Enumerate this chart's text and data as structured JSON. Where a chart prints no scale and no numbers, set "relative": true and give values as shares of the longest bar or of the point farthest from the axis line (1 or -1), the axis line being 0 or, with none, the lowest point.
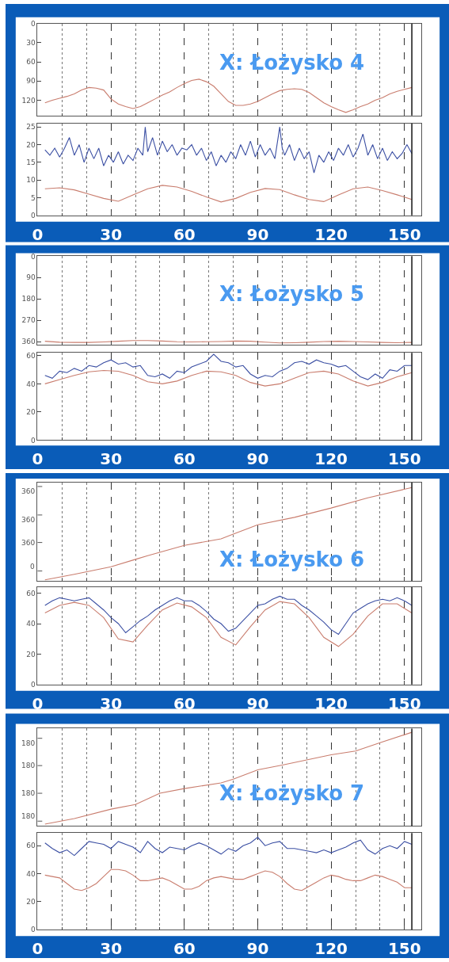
{
  "chart_data": [
    {
      "type": "line",
      "title": "X: Łożysko 4",
      "xlim": [
        0,
        157
      ],
      "xticks": [
        0,
        {
          "value": 10,
          "label": null
        },
        {
          "value": 20,
          "label": null
        },
        30,
        {
          "value": 40,
          "label": null
        },
        {
          "value": 50,
          "label": null
        },
        60,
        {
          "value": 70,
          "label": null
        },
        {
          "value": 80,
          "label": null
        },
        90,
        {
          "value": 100,
          "label": null
        },
        {
          "value": 110,
          "label": null
        },
        120,
        {
          "value": 130,
          "label": null
        },
        {
          "value": 140,
          "label": null
        },
        150
      ],
      "ylim": [
        144,
        0
      ],
      "yticks": [
        0,
        30,
        60,
        90,
        120
      ],
      "tick_labels": "y",
      "grid": "x",
      "ref_lines": [
        {
          "axis": "x",
          "value": 153,
          "color": "#222222"
        }
      ],
      "series": [
        {
          "color": "#c97d6e",
          "x": [
            3,
            6,
            9,
            12,
            15,
            18,
            21,
            24,
            27,
            30,
            33,
            36,
            39,
            42,
            45,
            48,
            51,
            54,
            57,
            60,
            63,
            66,
            69,
            72,
            75,
            78,
            81,
            84,
            87,
            90,
            93,
            96,
            99,
            102,
            105,
            108,
            111,
            114,
            117,
            120,
            123,
            126,
            129,
            132,
            135,
            138,
            141,
            144,
            147,
            150,
            153
          ],
          "values": [
            124,
            120,
            117,
            114,
            110,
            104,
            100,
            101,
            104,
            118,
            126,
            130,
            133,
            130,
            124,
            118,
            112,
            107,
            100,
            94,
            89,
            87,
            91,
            98,
            110,
            122,
            128,
            128,
            126,
            122,
            116,
            110,
            105,
            103,
            102,
            103,
            108,
            116,
            124,
            130,
            135,
            139,
            135,
            130,
            126,
            120,
            116,
            110,
            106,
            103,
            100
          ]
        }
      ]
    },
    {
      "type": "line",
      "xlim": [
        0,
        157
      ],
      "xticks": [
        0,
        {
          "value": 10,
          "label": null
        },
        {
          "value": 20,
          "label": null
        },
        30,
        {
          "value": 40,
          "label": null
        },
        {
          "value": 50,
          "label": null
        },
        60,
        {
          "value": 70,
          "label": null
        },
        {
          "value": 80,
          "label": null
        },
        90,
        {
          "value": 100,
          "label": null
        },
        {
          "value": 110,
          "label": null
        },
        120,
        {
          "value": 130,
          "label": null
        },
        {
          "value": 140,
          "label": null
        },
        150
      ],
      "ylim": [
        0,
        26
      ],
      "yticks": [
        0,
        5,
        10,
        15,
        20,
        25
      ],
      "grid": "x",
      "ref_lines": [
        {
          "axis": "x",
          "value": 153,
          "color": "#222222"
        }
      ],
      "series": [
        {
          "color": "#3b4fa3",
          "x": [
            3,
            5,
            7,
            9,
            11,
            13,
            15,
            17,
            19,
            21,
            23,
            25,
            27,
            29,
            31,
            33,
            35,
            37,
            39,
            41,
            43,
            44,
            45,
            47,
            49,
            51,
            53,
            55,
            57,
            59,
            61,
            63,
            65,
            67,
            69,
            71,
            73,
            75,
            77,
            79,
            81,
            83,
            85,
            87,
            89,
            91,
            93,
            95,
            97,
            99,
            100,
            101,
            103,
            105,
            107,
            109,
            111,
            113,
            115,
            117,
            119,
            121,
            123,
            125,
            127,
            129,
            131,
            133,
            135,
            137,
            139,
            141,
            143,
            145,
            147,
            149,
            151,
            153
          ],
          "values": [
            18.5,
            17,
            19,
            16.5,
            19,
            22,
            17,
            20,
            15,
            19,
            16,
            19,
            14,
            17,
            15,
            18,
            14.5,
            17,
            15.5,
            19,
            17,
            25,
            18,
            22,
            17,
            21,
            18,
            20,
            17,
            19,
            18.5,
            20,
            17,
            19,
            15.5,
            18,
            14,
            17,
            15,
            18,
            16,
            20,
            17,
            21,
            16.5,
            20,
            17,
            19,
            16,
            25,
            19,
            17,
            20,
            15.5,
            19,
            16,
            18,
            12,
            17,
            15,
            18,
            15.5,
            19,
            17,
            20,
            16.5,
            19,
            23,
            17,
            20,
            16,
            19,
            15.5,
            18,
            16,
            17.5,
            20,
            17.5
          ]
        },
        {
          "color": "#c97d6e",
          "x": [
            3,
            9,
            15,
            21,
            27,
            33,
            39,
            45,
            51,
            57,
            63,
            69,
            75,
            81,
            87,
            93,
            99,
            105,
            111,
            117,
            123,
            129,
            135,
            141,
            147,
            153
          ],
          "values": [
            7.5,
            7.8,
            7.2,
            6,
            4.8,
            4,
            5.8,
            7.5,
            8.5,
            8,
            6.8,
            5.2,
            3.8,
            4.8,
            6.5,
            7.6,
            7.3,
            5.8,
            4.5,
            3.9,
            5.8,
            7.5,
            8,
            7,
            5.8,
            4.5
          ]
        }
      ]
    },
    {
      "type": "line",
      "title": "X: Łożysko 5",
      "xlim": [
        0,
        157
      ],
      "xticks": [
        0,
        {
          "value": 10,
          "label": null
        },
        {
          "value": 20,
          "label": null
        },
        30,
        {
          "value": 40,
          "label": null
        },
        {
          "value": 50,
          "label": null
        },
        60,
        {
          "value": 70,
          "label": null
        },
        {
          "value": 80,
          "label": null
        },
        90,
        {
          "value": 100,
          "label": null
        },
        {
          "value": 110,
          "label": null
        },
        120,
        {
          "value": 130,
          "label": null
        },
        {
          "value": 140,
          "label": null
        },
        150
      ],
      "ylim": [
        374,
        0
      ],
      "yticks": [
        0,
        90,
        180,
        270,
        360
      ],
      "tick_labels": "y",
      "grid": "x",
      "ref_lines": [
        {
          "axis": "x",
          "value": 153,
          "color": "#222222"
        }
      ],
      "series": [
        {
          "color": "#c97d6e",
          "x": [
            3,
            9,
            15,
            21,
            27,
            33,
            39,
            45,
            51,
            57,
            63,
            69,
            75,
            81,
            87,
            93,
            99,
            105,
            111,
            117,
            123,
            129,
            135,
            141,
            147,
            153
          ],
          "values": [
            358,
            362,
            363,
            363,
            361,
            358,
            355,
            355,
            357,
            360,
            361,
            360,
            359,
            357,
            358,
            362,
            365,
            364,
            362,
            359,
            358,
            359,
            361,
            363,
            364,
            363
          ]
        }
      ]
    },
    {
      "type": "line",
      "xlim": [
        0,
        157
      ],
      "xticks": [
        0,
        {
          "value": 10,
          "label": null
        },
        {
          "value": 20,
          "label": null
        },
        30,
        {
          "value": 40,
          "label": null
        },
        {
          "value": 50,
          "label": null
        },
        60,
        {
          "value": 70,
          "label": null
        },
        {
          "value": 80,
          "label": null
        },
        90,
        {
          "value": 100,
          "label": null
        },
        {
          "value": 110,
          "label": null
        },
        120,
        {
          "value": 130,
          "label": null
        },
        {
          "value": 140,
          "label": null
        },
        150
      ],
      "ylim": [
        0,
        62
      ],
      "yticks": [
        0,
        20,
        40,
        60
      ],
      "grid": "x",
      "ref_lines": [
        {
          "axis": "x",
          "value": 153,
          "color": "#222222"
        }
      ],
      "series": [
        {
          "color": "#3b4fa3",
          "x": [
            3,
            6,
            9,
            12,
            15,
            18,
            21,
            24,
            27,
            30,
            33,
            36,
            39,
            42,
            45,
            48,
            51,
            54,
            57,
            60,
            63,
            66,
            69,
            72,
            75,
            78,
            81,
            84,
            87,
            90,
            93,
            96,
            99,
            102,
            105,
            108,
            111,
            114,
            117,
            120,
            123,
            126,
            129,
            132,
            135,
            138,
            141,
            144,
            147,
            150,
            153
          ],
          "values": [
            46,
            44,
            49,
            48,
            51,
            49,
            53,
            52,
            55,
            57,
            54,
            55,
            52,
            53,
            46,
            45,
            47,
            44,
            49,
            48,
            52,
            54,
            56,
            61,
            56,
            55,
            52,
            53,
            47,
            44,
            46,
            45,
            49,
            51,
            55,
            56,
            54,
            57,
            55,
            54,
            52,
            53,
            49,
            45,
            43,
            47,
            44,
            50,
            49,
            53,
            53
          ]
        },
        {
          "color": "#c97d6e",
          "x": [
            3,
            9,
            15,
            21,
            27,
            33,
            39,
            45,
            51,
            57,
            63,
            69,
            75,
            81,
            87,
            93,
            99,
            105,
            111,
            117,
            123,
            129,
            135,
            141,
            147,
            153
          ],
          "values": [
            40,
            43,
            46,
            48.5,
            49.5,
            49,
            46,
            41.5,
            40,
            42,
            46,
            49,
            48.5,
            46,
            41,
            38.5,
            40,
            44,
            48,
            49,
            47,
            42,
            38.5,
            41,
            45,
            48
          ]
        }
      ]
    },
    {
      "type": "line",
      "title": "X: Łożysko 6",
      "xlim": [
        0,
        157
      ],
      "xticks": [
        0,
        {
          "value": 10,
          "label": null
        },
        {
          "value": 20,
          "label": null
        },
        30,
        {
          "value": 40,
          "label": null
        },
        {
          "value": 50,
          "label": null
        },
        60,
        {
          "value": 70,
          "label": null
        },
        {
          "value": 80,
          "label": null
        },
        90,
        {
          "value": 100,
          "label": null
        },
        {
          "value": 110,
          "label": null
        },
        120,
        {
          "value": 130,
          "label": null
        },
        {
          "value": 140,
          "label": null
        },
        150
      ],
      "relative": true,
      "annotations": [
        "0",
        "360",
        "360",
        "360"
      ],
      "tick_labels": "y",
      "grid": "x",
      "ref_lines": [
        {
          "axis": "x",
          "value": 153,
          "color": "#222222"
        }
      ],
      "series": [
        {
          "color": "#c97d6e",
          "x": [
            3,
            15,
            30,
            40,
            45,
            60,
            75,
            80,
            90,
            105,
            120,
            135,
            153
          ],
          "values": [
            0.01,
            0.07,
            0.15,
            0.23,
            0.27,
            0.38,
            0.45,
            0.5,
            0.6,
            0.68,
            0.78,
            0.89,
            1
          ]
        }
      ]
    },
    {
      "type": "line",
      "xlim": [
        0,
        157
      ],
      "xticks": [
        0,
        {
          "value": 10,
          "label": null
        },
        {
          "value": 20,
          "label": null
        },
        30,
        {
          "value": 40,
          "label": null
        },
        {
          "value": 50,
          "label": null
        },
        60,
        {
          "value": 70,
          "label": null
        },
        {
          "value": 80,
          "label": null
        },
        90,
        {
          "value": 100,
          "label": null
        },
        {
          "value": 110,
          "label": null
        },
        120,
        {
          "value": 130,
          "label": null
        },
        {
          "value": 140,
          "label": null
        },
        150
      ],
      "ylim": [
        0,
        64
      ],
      "yticks": [
        0,
        20,
        40,
        60
      ],
      "grid": "x",
      "ref_lines": [
        {
          "axis": "x",
          "value": 153,
          "color": "#222222"
        }
      ],
      "series": [
        {
          "color": "#3b4fa3",
          "x": [
            3,
            6,
            9,
            12,
            15,
            18,
            21,
            24,
            27,
            30,
            33,
            36,
            39,
            42,
            45,
            48,
            51,
            54,
            57,
            60,
            63,
            66,
            69,
            72,
            75,
            78,
            81,
            84,
            87,
            90,
            93,
            96,
            99,
            102,
            105,
            108,
            111,
            114,
            117,
            120,
            123,
            126,
            129,
            132,
            135,
            138,
            141,
            144,
            147,
            150,
            153
          ],
          "values": [
            52,
            55,
            57,
            56,
            55,
            56,
            57,
            53,
            49,
            44,
            40,
            34,
            38,
            42,
            45,
            49,
            52,
            55,
            57,
            55,
            55,
            52,
            48,
            43,
            40,
            35,
            37,
            42,
            47,
            52,
            53,
            56,
            58,
            56,
            56,
            52,
            49,
            45,
            41,
            36,
            33,
            40,
            47,
            50,
            53,
            55,
            56,
            55,
            57,
            55,
            52
          ]
        },
        {
          "color": "#c97d6e",
          "x": [
            3,
            9,
            15,
            21,
            27,
            33,
            39,
            45,
            51,
            57,
            63,
            69,
            75,
            81,
            87,
            93,
            99,
            105,
            111,
            117,
            123,
            129,
            135,
            141,
            147,
            153
          ],
          "values": [
            47,
            52,
            54,
            52,
            44,
            30,
            28,
            39,
            49,
            53.5,
            51,
            44,
            31,
            26,
            38,
            49,
            54.5,
            53,
            44,
            31,
            25,
            33,
            45,
            53,
            53,
            47
          ]
        }
      ]
    },
    {
      "type": "line",
      "title": "X: Łożysko 7",
      "xlim": [
        0,
        157
      ],
      "xticks": [
        0,
        {
          "value": 10,
          "label": null
        },
        {
          "value": 20,
          "label": null
        },
        30,
        {
          "value": 40,
          "label": null
        },
        {
          "value": 50,
          "label": null
        },
        60,
        {
          "value": 70,
          "label": null
        },
        {
          "value": 80,
          "label": null
        },
        90,
        {
          "value": 100,
          "label": null
        },
        {
          "value": 110,
          "label": null
        },
        120,
        {
          "value": 130,
          "label": null
        },
        {
          "value": 140,
          "label": null
        },
        150
      ],
      "relative": true,
      "annotations": [
        "180",
        "180",
        "180",
        "180"
      ],
      "tick_labels": "y",
      "grid": "x",
      "ref_lines": [
        {
          "axis": "x",
          "value": 153,
          "color": "#222222"
        }
      ],
      "series": [
        {
          "color": "#c97d6e",
          "x": [
            3,
            15,
            30,
            40,
            50,
            60,
            75,
            80,
            90,
            100,
            120,
            130,
            140,
            153
          ],
          "values": [
            0.02,
            0.08,
            0.18,
            0.23,
            0.35,
            0.4,
            0.46,
            0.5,
            0.6,
            0.65,
            0.76,
            0.8,
            0.89,
            1
          ]
        }
      ]
    },
    {
      "type": "line",
      "xlim": [
        0,
        157
      ],
      "xticks": [
        0,
        {
          "value": 10,
          "label": null
        },
        {
          "value": 20,
          "label": null
        },
        30,
        {
          "value": 40,
          "label": null
        },
        {
          "value": 50,
          "label": null
        },
        60,
        {
          "value": 70,
          "label": null
        },
        {
          "value": 80,
          "label": null
        },
        90,
        {
          "value": 100,
          "label": null
        },
        {
          "value": 110,
          "label": null
        },
        120,
        {
          "value": 130,
          "label": null
        },
        {
          "value": 140,
          "label": null
        },
        150
      ],
      "ylim": [
        0,
        69
      ],
      "yticks": [
        0,
        20,
        40,
        60
      ],
      "grid": "x",
      "ref_lines": [
        {
          "axis": "x",
          "value": 153,
          "color": "#222222"
        }
      ],
      "series": [
        {
          "color": "#3b4fa3",
          "x": [
            3,
            6,
            9,
            12,
            15,
            18,
            21,
            24,
            27,
            30,
            33,
            36,
            39,
            42,
            45,
            48,
            51,
            54,
            57,
            60,
            63,
            66,
            69,
            72,
            75,
            78,
            81,
            84,
            87,
            90,
            93,
            96,
            99,
            102,
            105,
            108,
            111,
            114,
            117,
            120,
            123,
            126,
            129,
            132,
            135,
            138,
            141,
            144,
            147,
            150,
            153
          ],
          "values": [
            62,
            58,
            55,
            57,
            53,
            58,
            63,
            62,
            61,
            58,
            63,
            61,
            59,
            55,
            63,
            58,
            55,
            59,
            58,
            57,
            60,
            62,
            60,
            57,
            54,
            58,
            56,
            60,
            62,
            66,
            60,
            62,
            63,
            58,
            58,
            57,
            56,
            55,
            57,
            55,
            57,
            59,
            62,
            64,
            57,
            54,
            58,
            60,
            58,
            63,
            61
          ]
        },
        {
          "color": "#c97d6e",
          "x": [
            3,
            6,
            9,
            12,
            15,
            18,
            21,
            24,
            27,
            30,
            33,
            36,
            39,
            42,
            45,
            48,
            51,
            54,
            57,
            60,
            63,
            66,
            69,
            72,
            75,
            78,
            81,
            84,
            87,
            90,
            93,
            96,
            99,
            102,
            105,
            108,
            111,
            114,
            117,
            120,
            123,
            126,
            129,
            132,
            135,
            138,
            141,
            144,
            147,
            150,
            153
          ],
          "values": [
            39,
            38,
            37,
            33,
            29,
            28,
            30,
            33,
            38,
            43,
            43,
            42,
            39,
            35,
            35,
            36,
            37,
            35,
            32,
            29,
            29,
            31,
            35,
            37,
            38,
            37,
            36,
            36,
            38,
            40,
            42,
            41,
            38,
            33,
            29,
            28,
            31,
            34,
            37,
            39,
            38,
            36,
            35,
            35,
            37,
            39,
            38,
            36,
            34,
            30,
            30
          ]
        }
      ]
    }
  ]
}
